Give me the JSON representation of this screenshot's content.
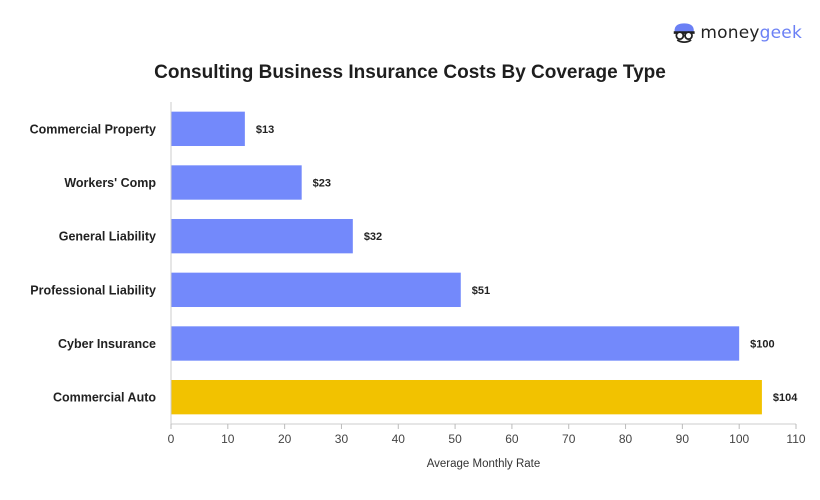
{
  "brand": {
    "name_part1": "money",
    "name_part2": "geek",
    "logo_icon": "moneygeek-face-icon"
  },
  "chart_data": {
    "type": "bar",
    "orientation": "horizontal",
    "title": "Consulting Business Insurance Costs By Coverage Type",
    "xlabel": "Average Monthly Rate",
    "ylabel": "",
    "xlim": [
      0,
      110
    ],
    "xticks": [
      0,
      10,
      20,
      30,
      40,
      50,
      60,
      70,
      80,
      90,
      100,
      110
    ],
    "categories": [
      "Commercial Property",
      "Workers' Comp",
      "General Liability",
      "Professional Liability",
      "Cyber Insurance",
      "Commercial Auto"
    ],
    "values": [
      13,
      23,
      32,
      51,
      100,
      104
    ],
    "data_labels": [
      "$13",
      "$23",
      "$32",
      "$51",
      "$100",
      "$104"
    ],
    "colors": {
      "default_bar": "#7389fb",
      "highlight_bar": "#f2c200",
      "highlight_category": "Commercial Auto"
    },
    "grid": false,
    "legend": "none"
  }
}
